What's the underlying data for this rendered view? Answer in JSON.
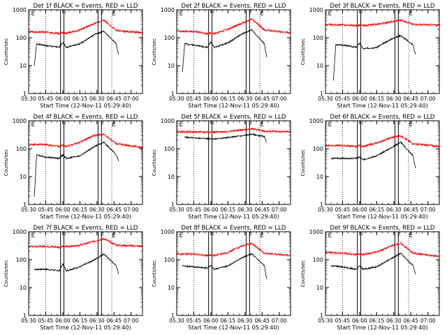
{
  "x_labels": [
    "05:30",
    "05:45",
    "06:00",
    "06:15",
    "06:30",
    "06:45",
    "07:00"
  ],
  "y_ticks": [
    {
      "v": 1,
      "label": "1"
    },
    {
      "v": 10,
      "label": "10"
    },
    {
      "v": 100,
      "label": "100"
    },
    {
      "v": 1000,
      "label": "1000"
    }
  ],
  "ylabel": "Counts/sec",
  "xlabel": "Start Time (12-Nov-11 05:29:40)",
  "marker_labels": [
    "E",
    "F",
    "F",
    "E"
  ],
  "colors": {
    "events": "#000000",
    "lld": "#ff0000"
  },
  "chart_data": [
    {
      "type": "line",
      "title": "Det 1f BLACK = Events, RED = LLD",
      "xlabel": "Start Time (12-Nov-11 05:29:40)",
      "ylabel": "Counts/sec",
      "yscale": "log",
      "ylim": [
        1,
        1000
      ],
      "xlim": [
        "05:30",
        "07:10"
      ],
      "grid": "dotted vertical",
      "series": [
        {
          "color": "#000000",
          "x": [
            "05:35",
            "05:37",
            "05:45",
            "05:57",
            "06:00",
            "06:03",
            "06:15",
            "06:28",
            "06:36",
            "06:47",
            "06:49"
          ],
          "y": [
            10,
            60,
            52,
            45,
            70,
            45,
            60,
            130,
            170,
            60,
            25
          ]
        },
        {
          "color": "#ff0000",
          "x": [
            "05:30",
            "05:45",
            "05:57",
            "06:00",
            "06:03",
            "06:15",
            "06:28",
            "06:36",
            "06:47",
            "07:10"
          ],
          "y": [
            160,
            160,
            140,
            150,
            140,
            190,
            320,
            420,
            180,
            150
          ]
        }
      ]
    },
    {
      "type": "line",
      "title": "Det 2f BLACK = Events, RED = LLD",
      "xlabel": "Start Time (12-Nov-11 05:29:40)",
      "ylabel": "Counts/sec",
      "yscale": "log",
      "ylim": [
        1,
        1000
      ],
      "xlim": [
        "05:30",
        "07:10"
      ],
      "grid": "dotted vertical",
      "series": [
        {
          "color": "#000000",
          "x": [
            "05:35",
            "05:37",
            "05:45",
            "05:57",
            "06:00",
            "06:03",
            "06:15",
            "06:28",
            "06:36",
            "06:47",
            "06:49"
          ],
          "y": [
            6,
            60,
            55,
            45,
            70,
            45,
            65,
            140,
            190,
            60,
            20
          ]
        },
        {
          "color": "#ff0000",
          "x": [
            "05:30",
            "05:45",
            "05:57",
            "06:00",
            "06:03",
            "06:15",
            "06:28",
            "06:36",
            "06:47",
            "07:10"
          ],
          "y": [
            170,
            165,
            140,
            150,
            140,
            200,
            340,
            460,
            190,
            150
          ]
        }
      ]
    },
    {
      "type": "line",
      "title": "Det 3f BLACK = Events, RED = LLD",
      "xlabel": "Start Time (12-Nov-11 05:29:40)",
      "ylabel": "Counts/sec",
      "yscale": "log",
      "ylim": [
        1,
        1000
      ],
      "xlim": [
        "05:30",
        "07:10"
      ],
      "grid": "dotted vertical",
      "series": [
        {
          "color": "#000000",
          "x": [
            "05:37",
            "05:39",
            "05:45",
            "05:57",
            "06:00",
            "06:03",
            "06:15",
            "06:28",
            "06:36",
            "06:47",
            "06:49"
          ],
          "y": [
            3,
            55,
            55,
            45,
            65,
            40,
            45,
            90,
            120,
            55,
            25
          ]
        },
        {
          "color": "#ff0000",
          "x": [
            "05:30",
            "05:45",
            "05:57",
            "06:00",
            "06:03",
            "06:15",
            "06:28",
            "06:36",
            "06:47",
            "07:10"
          ],
          "y": [
            290,
            290,
            270,
            280,
            270,
            300,
            370,
            430,
            300,
            280
          ]
        }
      ]
    },
    {
      "type": "line",
      "title": "Det 4f BLACK = Events, RED = LLD",
      "xlabel": "Start Time (12-Nov-11 05:29:40)",
      "ylabel": "Counts/sec",
      "yscale": "log",
      "ylim": [
        1,
        1000
      ],
      "xlim": [
        "05:30",
        "07:10"
      ],
      "grid": "dotted vertical",
      "series": [
        {
          "color": "#000000",
          "x": [
            "05:35",
            "05:37",
            "05:45",
            "05:57",
            "06:00",
            "06:03",
            "06:15",
            "06:28",
            "06:36",
            "06:47",
            "06:49"
          ],
          "y": [
            2,
            60,
            50,
            45,
            60,
            45,
            55,
            120,
            170,
            60,
            35
          ]
        },
        {
          "color": "#ff0000",
          "x": [
            "05:30",
            "05:45",
            "05:57",
            "06:00",
            "06:03",
            "06:15",
            "06:28",
            "06:36",
            "06:47",
            "07:10"
          ],
          "y": [
            140,
            140,
            120,
            130,
            120,
            170,
            300,
            330,
            150,
            110
          ]
        }
      ]
    },
    {
      "type": "line",
      "title": "Det 5f BLACK = Events, RED = LLD",
      "xlabel": "Start Time (12-Nov-11 05:29:40)",
      "ylabel": "Counts/sec",
      "yscale": "log",
      "ylim": [
        1,
        1000
      ],
      "xlim": [
        "05:30",
        "07:10"
      ],
      "grid": "dotted vertical",
      "series": [
        {
          "color": "#000000",
          "x": [
            "05:37",
            "05:45",
            "05:57",
            "06:00",
            "06:03",
            "06:15",
            "06:28",
            "06:36",
            "06:47",
            "06:49"
          ],
          "y": [
            260,
            240,
            230,
            230,
            220,
            250,
            290,
            330,
            270,
            170
          ]
        },
        {
          "color": "#ff0000",
          "x": [
            "05:30",
            "05:45",
            "05:57",
            "06:00",
            "06:03",
            "06:15",
            "06:28",
            "06:36",
            "06:47",
            "07:10"
          ],
          "y": [
            400,
            400,
            390,
            400,
            390,
            410,
            470,
            520,
            420,
            400
          ]
        }
      ]
    },
    {
      "type": "line",
      "title": "Det 6f BLACK = Events, RED = LLD",
      "xlabel": "Start Time (12-Nov-11 05:29:40)",
      "ylabel": "Counts/sec",
      "yscale": "log",
      "ylim": [
        1,
        1000
      ],
      "xlim": [
        "05:30",
        "07:10"
      ],
      "grid": "dotted vertical",
      "series": [
        {
          "color": "#000000",
          "x": [
            "05:35",
            "05:45",
            "05:57",
            "06:00",
            "06:03",
            "06:15",
            "06:28",
            "06:36",
            "06:47",
            "06:49"
          ],
          "y": [
            45,
            45,
            45,
            50,
            40,
            55,
            110,
            170,
            55,
            20
          ]
        },
        {
          "color": "#ff0000",
          "x": [
            "05:30",
            "05:45",
            "05:57",
            "06:00",
            "06:03",
            "06:15",
            "06:28",
            "06:36",
            "06:47",
            "07:10"
          ],
          "y": [
            130,
            130,
            120,
            130,
            120,
            160,
            250,
            290,
            150,
            120
          ]
        }
      ]
    },
    {
      "type": "line",
      "title": "Det 7f BLACK = Events, RED = LLD",
      "xlabel": "Start Time (12-Nov-11 05:29:40)",
      "ylabel": "Counts/sec",
      "yscale": "log",
      "ylim": [
        1,
        1000
      ],
      "xlim": [
        "05:30",
        "07:10"
      ],
      "grid": "dotted vertical",
      "series": [
        {
          "color": "#000000",
          "x": [
            "05:35",
            "05:45",
            "05:57",
            "06:00",
            "06:03",
            "06:15",
            "06:28",
            "06:36",
            "06:47",
            "06:49"
          ],
          "y": [
            45,
            45,
            40,
            70,
            40,
            55,
            100,
            160,
            60,
            30
          ]
        },
        {
          "color": "#ff0000",
          "x": [
            "05:30",
            "05:45",
            "05:57",
            "06:00",
            "06:03",
            "06:15",
            "06:28",
            "06:36",
            "06:47",
            "07:10"
          ],
          "y": [
            300,
            300,
            280,
            300,
            290,
            330,
            460,
            560,
            330,
            300
          ]
        }
      ]
    },
    {
      "type": "line",
      "title": "Det 8f BLACK = Events, RED = LLD",
      "xlabel": "Start Time (12-Nov-11 05:29:40)",
      "ylabel": "Counts/sec",
      "yscale": "log",
      "ylim": [
        1,
        1000
      ],
      "xlim": [
        "05:30",
        "07:10"
      ],
      "grid": "dotted vertical",
      "series": [
        {
          "color": "#000000",
          "x": [
            "05:35",
            "05:45",
            "05:57",
            "06:00",
            "06:03",
            "06:15",
            "06:28",
            "06:36",
            "06:47",
            "06:49"
          ],
          "y": [
            60,
            55,
            50,
            60,
            45,
            60,
            120,
            160,
            60,
            20
          ]
        },
        {
          "color": "#ff0000",
          "x": [
            "05:30",
            "05:45",
            "05:57",
            "06:00",
            "06:03",
            "06:15",
            "06:28",
            "06:36",
            "06:47",
            "07:10"
          ],
          "y": [
            160,
            160,
            140,
            150,
            140,
            180,
            320,
            380,
            170,
            140
          ]
        }
      ]
    },
    {
      "type": "line",
      "title": "Det 9f BLACK = Events, RED = LLD",
      "xlabel": "Start Time (12-Nov-11 05:29:40)",
      "ylabel": "Counts/sec",
      "yscale": "log",
      "ylim": [
        1,
        1000
      ],
      "xlim": [
        "05:30",
        "07:10"
      ],
      "grid": "dotted vertical",
      "series": [
        {
          "color": "#000000",
          "x": [
            "05:35",
            "05:45",
            "05:57",
            "06:00",
            "06:03",
            "06:15",
            "06:28",
            "06:36",
            "06:47",
            "06:49"
          ],
          "y": [
            60,
            55,
            45,
            60,
            45,
            55,
            110,
            170,
            60,
            30
          ]
        },
        {
          "color": "#ff0000",
          "x": [
            "05:30",
            "05:45",
            "05:57",
            "06:00",
            "06:03",
            "06:15",
            "06:28",
            "06:36",
            "06:47",
            "07:10"
          ],
          "y": [
            180,
            170,
            150,
            160,
            150,
            190,
            310,
            390,
            170,
            130
          ]
        }
      ]
    }
  ]
}
